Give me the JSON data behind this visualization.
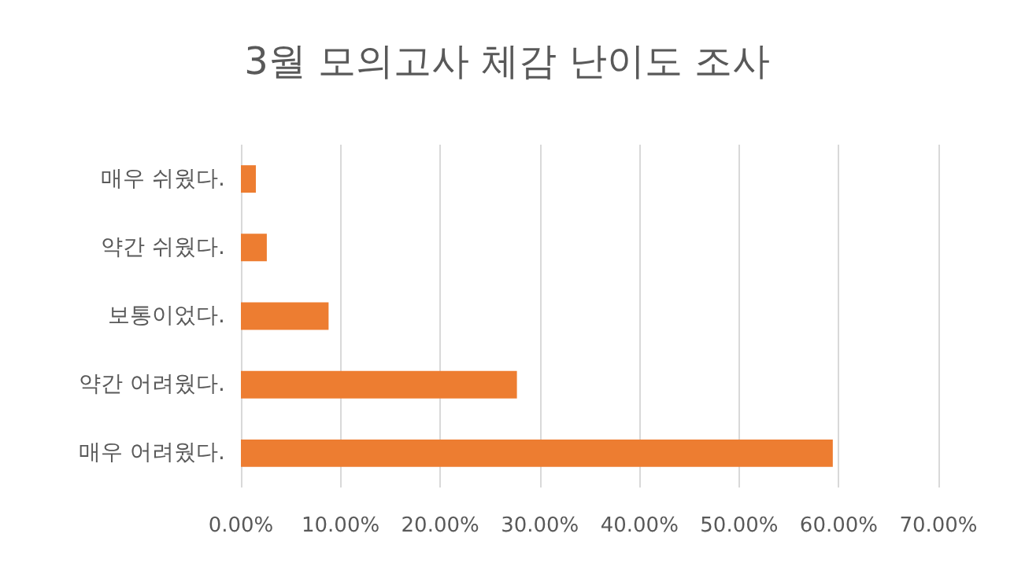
{
  "chart_data": {
    "type": "bar",
    "orientation": "horizontal",
    "title": "3월 모의고사 체감 난이도 조사",
    "categories": [
      "매우 쉬웠다.",
      "약간 쉬웠다.",
      "보통이었다.",
      "약간 어려웠다.",
      "매우 어려웠다."
    ],
    "values": [
      1.5,
      2.6,
      8.8,
      27.7,
      59.4
    ],
    "color": "#ed7d31",
    "xlim": [
      0,
      70
    ],
    "xticks": [
      {
        "value": 0,
        "label": "0.00%"
      },
      {
        "value": 10,
        "label": "10.00%"
      },
      {
        "value": 20,
        "label": "20.00%"
      },
      {
        "value": 30,
        "label": "30.00%"
      },
      {
        "value": 40,
        "label": "40.00%"
      },
      {
        "value": 50,
        "label": "50.00%"
      },
      {
        "value": 60,
        "label": "60.00%"
      },
      {
        "value": 70,
        "label": "70.00%"
      }
    ],
    "grid": "x"
  }
}
